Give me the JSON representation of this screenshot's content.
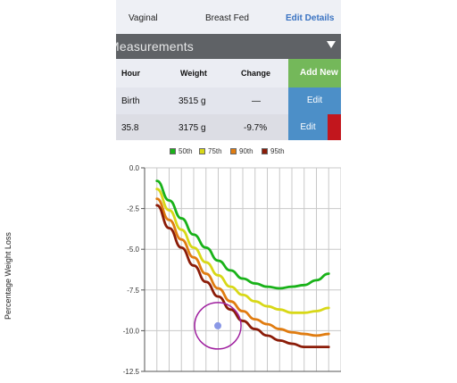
{
  "delivery": {
    "type": "Vaginal",
    "feeding": "Breast Fed",
    "edit_details_label": "Edit Details"
  },
  "section": {
    "title": "Measurements"
  },
  "table": {
    "headers": {
      "hour": "Hour",
      "weight": "Weight",
      "change": "Change"
    },
    "add_new_label": "Add New",
    "rows": [
      {
        "hour": "Birth",
        "weight": "3515 g",
        "change": "—",
        "edit_label": "Edit"
      },
      {
        "hour": "35.8",
        "weight": "3175 g",
        "change": "-9.7%",
        "edit_label": "Edit"
      }
    ]
  },
  "chart_data": {
    "type": "line",
    "ylabel": "Percentage Weight Loss",
    "ylim": [
      -12.5,
      0
    ],
    "yticks": [
      "0.0",
      "-2.5",
      "-5.0",
      "-7.5",
      "-10.0",
      "-12.5"
    ],
    "grid": true,
    "legend_position": "top",
    "x": [
      6,
      12,
      18,
      24,
      30,
      36,
      42,
      48,
      54,
      60,
      66,
      72,
      78,
      84,
      90
    ],
    "series": [
      {
        "name": "50th",
        "color": "#19b219",
        "values": [
          -0.8,
          -2.0,
          -3.1,
          -4.1,
          -4.9,
          -5.7,
          -6.3,
          -6.8,
          -7.1,
          -7.3,
          -7.4,
          -7.3,
          -7.2,
          -6.9,
          -6.5
        ]
      },
      {
        "name": "75th",
        "color": "#d8d817",
        "values": [
          -1.3,
          -2.6,
          -3.8,
          -4.9,
          -5.8,
          -6.6,
          -7.3,
          -7.8,
          -8.2,
          -8.5,
          -8.7,
          -8.9,
          -8.9,
          -8.8,
          -8.6
        ]
      },
      {
        "name": "90th",
        "color": "#e07c10",
        "values": [
          -1.9,
          -3.2,
          -4.4,
          -5.5,
          -6.5,
          -7.4,
          -8.2,
          -8.8,
          -9.3,
          -9.6,
          -9.9,
          -10.1,
          -10.2,
          -10.3,
          -10.2
        ]
      },
      {
        "name": "95th",
        "color": "#8b1c08",
        "values": [
          -2.3,
          -3.7,
          -4.9,
          -6.0,
          -7.0,
          -7.9,
          -8.7,
          -9.4,
          -9.9,
          -10.3,
          -10.6,
          -10.8,
          -11.0,
          -11.0,
          -11.0
        ]
      }
    ],
    "points": [
      {
        "x": 35.8,
        "y": -9.7,
        "color": "#8a98e6",
        "highlight": "#9f1f9f"
      }
    ]
  }
}
